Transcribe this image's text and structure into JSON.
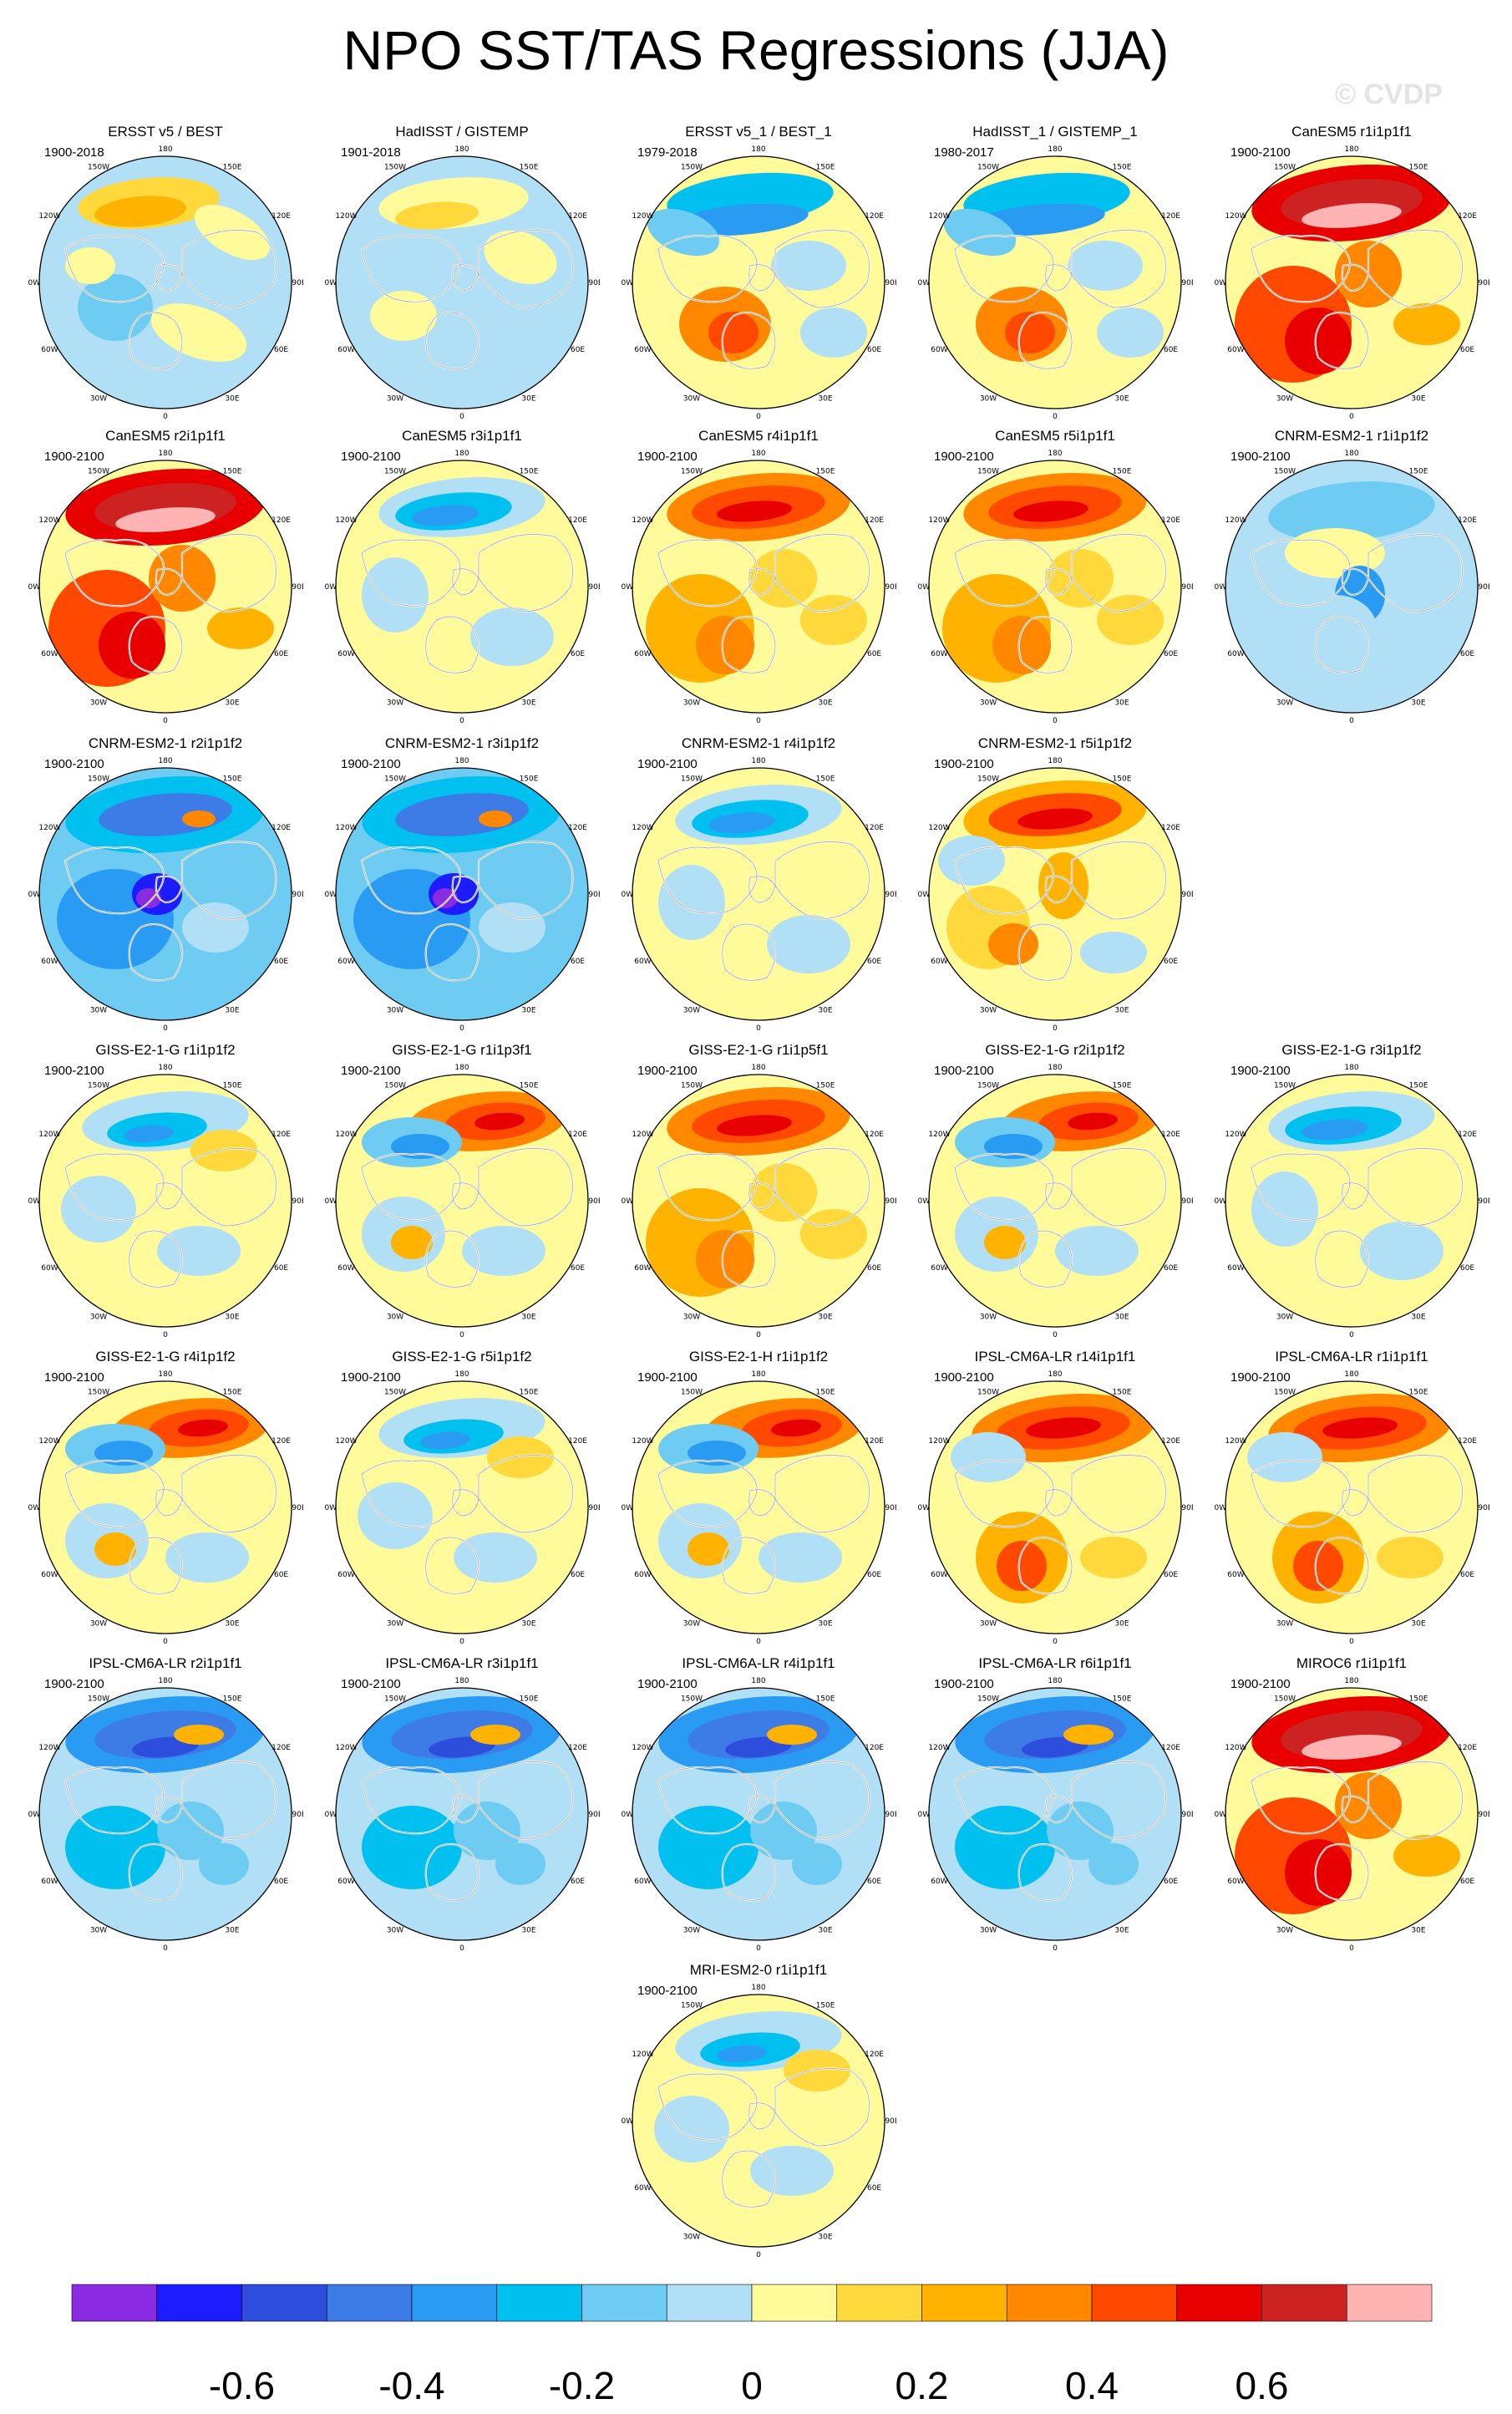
{
  "title": "NPO SST/TAS Regressions (JJA)",
  "watermark": "© CVDP",
  "lon_labels": [
    "180",
    "150E",
    "120E",
    "90E",
    "60E",
    "30E",
    "0",
    "30W",
    "60W",
    "90W",
    "120W",
    "150W"
  ],
  "colorbar": {
    "colors": [
      "#8a2be2",
      "#1c1cff",
      "#2d4edc",
      "#3d7be6",
      "#2a9bf3",
      "#00c0f0",
      "#6ecbf2",
      "#b1dff5",
      "#fffa9a",
      "#ffd93c",
      "#ffb300",
      "#ff8800",
      "#ff4800",
      "#e80000",
      "#cc2222",
      "#ffb3b3"
    ],
    "labels": [
      "-0.6",
      "-0.4",
      "-0.2",
      "0",
      "0.2",
      "0.4",
      "0.6"
    ]
  },
  "panels": [
    {
      "title": "ERSST v5 / BEST",
      "years": "1900-2018",
      "pattern": "obs1"
    },
    {
      "title": "HadISST / GISTEMP",
      "years": "1901-2018",
      "pattern": "obs2"
    },
    {
      "title": "ERSST v5_1 / BEST_1",
      "years": "1979-2018",
      "pattern": "obs3"
    },
    {
      "title": "HadISST_1 / GISTEMP_1",
      "years": "1980-2017",
      "pattern": "obs3"
    },
    {
      "title": "CanESM5 r1i1p1f1",
      "years": "1900-2100",
      "pattern": "strongwarm"
    },
    {
      "title": "CanESM5 r2i1p1f1",
      "years": "1900-2100",
      "pattern": "strongwarm"
    },
    {
      "title": "CanESM5 r3i1p1f1",
      "years": "1900-2100",
      "pattern": "mildcool"
    },
    {
      "title": "CanESM5 r4i1p1f1",
      "years": "1900-2100",
      "pattern": "warm"
    },
    {
      "title": "CanESM5 r5i1p1f1",
      "years": "1900-2100",
      "pattern": "warm"
    },
    {
      "title": "CNRM-ESM2-1 r1i1p1f2",
      "years": "1900-2100",
      "pattern": "cnrm1"
    },
    {
      "title": "CNRM-ESM2-1 r2i1p1f2",
      "years": "1900-2100",
      "pattern": "strongcool"
    },
    {
      "title": "CNRM-ESM2-1 r3i1p1f2",
      "years": "1900-2100",
      "pattern": "strongcool"
    },
    {
      "title": "CNRM-ESM2-1 r4i1p1f2",
      "years": "1900-2100",
      "pattern": "mildcool"
    },
    {
      "title": "CNRM-ESM2-1 r5i1p1f2",
      "years": "1900-2100",
      "pattern": "warmcool"
    },
    {
      "title": "GISS-E2-1-G r1i1p1f2",
      "years": "1900-2100",
      "pattern": "gissmild"
    },
    {
      "title": "GISS-E2-1-G r1i1p3f1",
      "years": "1900-2100",
      "pattern": "gissdipole"
    },
    {
      "title": "GISS-E2-1-G r1i1p5f1",
      "years": "1900-2100",
      "pattern": "warm"
    },
    {
      "title": "GISS-E2-1-G r2i1p1f2",
      "years": "1900-2100",
      "pattern": "gissdipole"
    },
    {
      "title": "GISS-E2-1-G r3i1p1f2",
      "years": "1900-2100",
      "pattern": "mildcool"
    },
    {
      "title": "GISS-E2-1-G r4i1p1f2",
      "years": "1900-2100",
      "pattern": "gissdipole"
    },
    {
      "title": "GISS-E2-1-G r5i1p1f2",
      "years": "1900-2100",
      "pattern": "gissmild"
    },
    {
      "title": "GISS-E2-1-H r1i1p1f2",
      "years": "1900-2100",
      "pattern": "gissdipole"
    },
    {
      "title": "IPSL-CM6A-LR r14i1p1f1",
      "years": "1900-2100",
      "pattern": "ipslwarm"
    },
    {
      "title": "IPSL-CM6A-LR r1i1p1f1",
      "years": "1900-2100",
      "pattern": "ipslwarm"
    },
    {
      "title": "IPSL-CM6A-LR r2i1p1f1",
      "years": "1900-2100",
      "pattern": "ipslcool"
    },
    {
      "title": "IPSL-CM6A-LR r3i1p1f1",
      "years": "1900-2100",
      "pattern": "ipslcool"
    },
    {
      "title": "IPSL-CM6A-LR r4i1p1f1",
      "years": "1900-2100",
      "pattern": "ipslcool"
    },
    {
      "title": "IPSL-CM6A-LR r6i1p1f1",
      "years": "1900-2100",
      "pattern": "ipslcool"
    },
    {
      "title": "MIROC6 r1i1p1f1",
      "years": "1900-2100",
      "pattern": "strongwarm"
    },
    {
      "title": "MRI-ESM2-0 r1i1p1f1",
      "years": "1900-2100",
      "pattern": "gissmild"
    }
  ]
}
